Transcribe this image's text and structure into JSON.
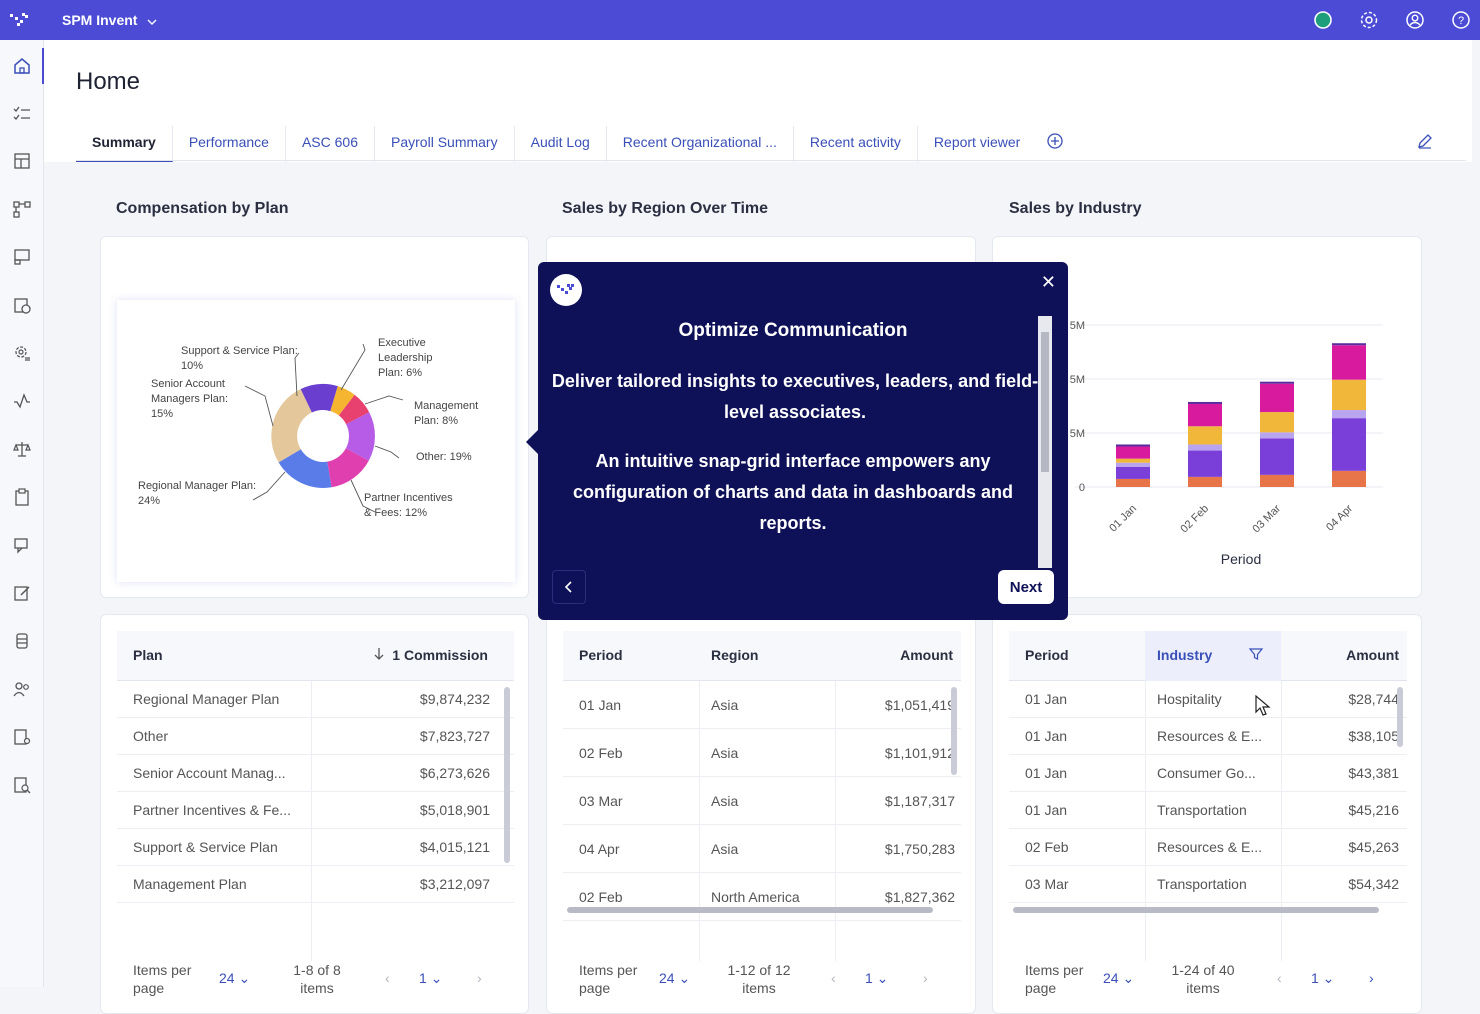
{
  "topbar": {
    "app_name": "SPM Invent"
  },
  "page": {
    "title": "Home"
  },
  "tabs": [
    "Summary",
    "Performance",
    "ASC 606",
    "Payroll Summary",
    "Audit Log",
    "Recent Organizational ...",
    "Recent activity",
    "Report viewer"
  ],
  "sections": {
    "compensation": "Compensation by Plan",
    "region": "Sales by Region Over Time",
    "industry": "Sales by Industry"
  },
  "donut": {
    "labels": [
      "Support & Service Plan: 10%",
      "Senior Account Managers Plan: 15%",
      "Executive Leadership Plan: 6%",
      "Management Plan: 8%",
      "Other: 19%",
      "Regional Manager Plan: 24%",
      "Partner Incentives & Fees: 12%"
    ]
  },
  "popover": {
    "title": "Optimize Communication",
    "body1": "Deliver tailored insights to executives, leaders, and field-level associates.",
    "body2": "An intuitive snap-grid interface empowers any configuration of charts and data in dashboards and reports.",
    "next": "Next"
  },
  "chart_data": {
    "type": "bar",
    "stacked": true,
    "title": "Sales by Industry",
    "xlabel": "Period",
    "ylabel": "",
    "categories": [
      "01 Jan",
      "02 Feb",
      "03 Mar",
      "04 Apr"
    ],
    "y_tick_labels": [
      "0",
      "5M",
      "5M",
      "5M"
    ],
    "series": [
      {
        "color": "#e8754a",
        "values": [
          0.4,
          0.5,
          0.6,
          0.8
        ]
      },
      {
        "color": "#7a3fd8",
        "values": [
          0.6,
          1.3,
          1.8,
          2.6
        ]
      },
      {
        "color": "#b9a4f0",
        "values": [
          0.2,
          0.3,
          0.3,
          0.4
        ]
      },
      {
        "color": "#f0b73a",
        "values": [
          0.2,
          0.9,
          1.0,
          1.5
        ]
      },
      {
        "color": "#d81b9e",
        "values": [
          0.6,
          1.1,
          1.4,
          1.7
        ]
      },
      {
        "color": "#5a2ca0",
        "values": [
          0.1,
          0.1,
          0.1,
          0.1
        ]
      }
    ]
  },
  "comp_table": {
    "headers": [
      "Plan",
      "1 Commission"
    ],
    "rows": [
      [
        "Regional Manager Plan",
        "$9,874,232"
      ],
      [
        "Other",
        "$7,823,727"
      ],
      [
        "Senior Account Manag...",
        "$6,273,626"
      ],
      [
        "Partner Incentives & Fe...",
        "$5,018,901"
      ],
      [
        "Support & Service Plan",
        "$4,015,121"
      ],
      [
        "Management Plan",
        "$3,212,097"
      ]
    ],
    "pager": {
      "per_page_label": "Items per page",
      "per_page": "24",
      "range": "1-8 of 8 items",
      "page": "1"
    }
  },
  "region_table": {
    "headers": [
      "Period",
      "Region",
      "Amount"
    ],
    "rows": [
      [
        "01 Jan",
        "Asia",
        "$1,051,419"
      ],
      [
        "02 Feb",
        "Asia",
        "$1,101,912"
      ],
      [
        "03 Mar",
        "Asia",
        "$1,187,317"
      ],
      [
        "04 Apr",
        "Asia",
        "$1,750,283"
      ],
      [
        "02 Feb",
        "North America",
        "$1,827,362"
      ]
    ],
    "pager": {
      "per_page_label": "Items per page",
      "per_page": "24",
      "range": "1-12 of 12 items",
      "page": "1"
    }
  },
  "industry_table": {
    "headers": [
      "Period",
      "Industry",
      "Amount"
    ],
    "rows": [
      [
        "01 Jan",
        "Hospitality",
        "$28,744"
      ],
      [
        "01 Jan",
        "Resources & E...",
        "$38,105"
      ],
      [
        "01 Jan",
        "Consumer Go...",
        "$43,381"
      ],
      [
        "01 Jan",
        "Transportation",
        "$45,216"
      ],
      [
        "02 Feb",
        "Resources & E...",
        "$45,263"
      ],
      [
        "03 Mar",
        "Transportation",
        "$54,342"
      ]
    ],
    "pager": {
      "per_page_label": "Items per page",
      "per_page": "24",
      "range": "1-24 of 40 items",
      "page": "1"
    }
  },
  "colors": {
    "topbar": "#4b4bd6",
    "popover": "#0e1158",
    "accent": "#3a4fb8"
  },
  "icons": {
    "sidebar": [
      "home-icon",
      "checklist-icon",
      "dashboard-icon",
      "workflow-icon",
      "report-icon",
      "calendar-clock-icon",
      "settings-gear-icon",
      "activity-icon",
      "scale-icon",
      "clipboard-icon",
      "chat-icon",
      "edit-icon",
      "database-icon",
      "users-icon",
      "user-report-icon",
      "document-search-icon"
    ],
    "topbar": [
      "status-dot-icon",
      "gear-icon",
      "account-icon",
      "help-icon"
    ]
  }
}
